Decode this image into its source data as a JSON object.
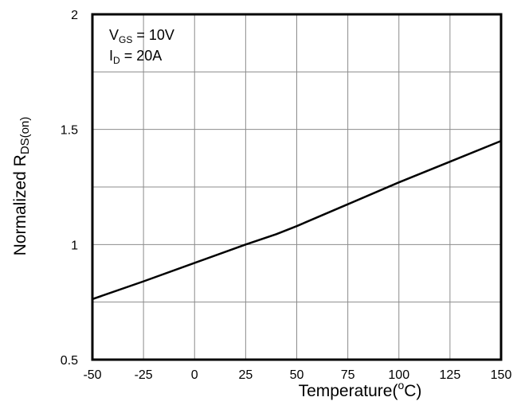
{
  "chart_data": {
    "type": "line",
    "x": [
      -50,
      -25,
      0,
      25,
      40,
      50,
      75,
      100,
      125,
      150
    ],
    "series": [
      {
        "values": [
          0.763,
          0.84,
          0.92,
          1.0,
          1.045,
          1.08,
          1.175,
          1.27,
          1.36,
          1.45
        ]
      }
    ],
    "xlabel": "Temperature(",
    "xlabel_sup": "o",
    "xlabel_after": "C)",
    "ylabel": "Normalized R",
    "ylabel_sub": "DS(on)",
    "xlim": [
      -50,
      150
    ],
    "ylim": [
      0.5,
      2
    ],
    "xticks": [
      -50,
      -25,
      0,
      25,
      50,
      75,
      100,
      125,
      150
    ],
    "yticks": [
      0.5,
      1,
      1.5,
      2
    ],
    "xtick_labels": [
      "-50",
      "-25",
      "0",
      "25",
      "50",
      "75",
      "100",
      "125",
      "150"
    ],
    "ytick_labels": [
      "0.5",
      "1",
      "1.5",
      "2"
    ],
    "ygrid_minor": [
      0.75,
      1.25,
      1.75
    ],
    "grid": true,
    "annotations": [
      {
        "main": "V",
        "sub": "GS",
        "rest": " = 10V"
      },
      {
        "main": "I",
        "sub": "D",
        "rest": " = 20A"
      }
    ],
    "line_color": "#000000",
    "grid_color": "#8c8c8c"
  }
}
